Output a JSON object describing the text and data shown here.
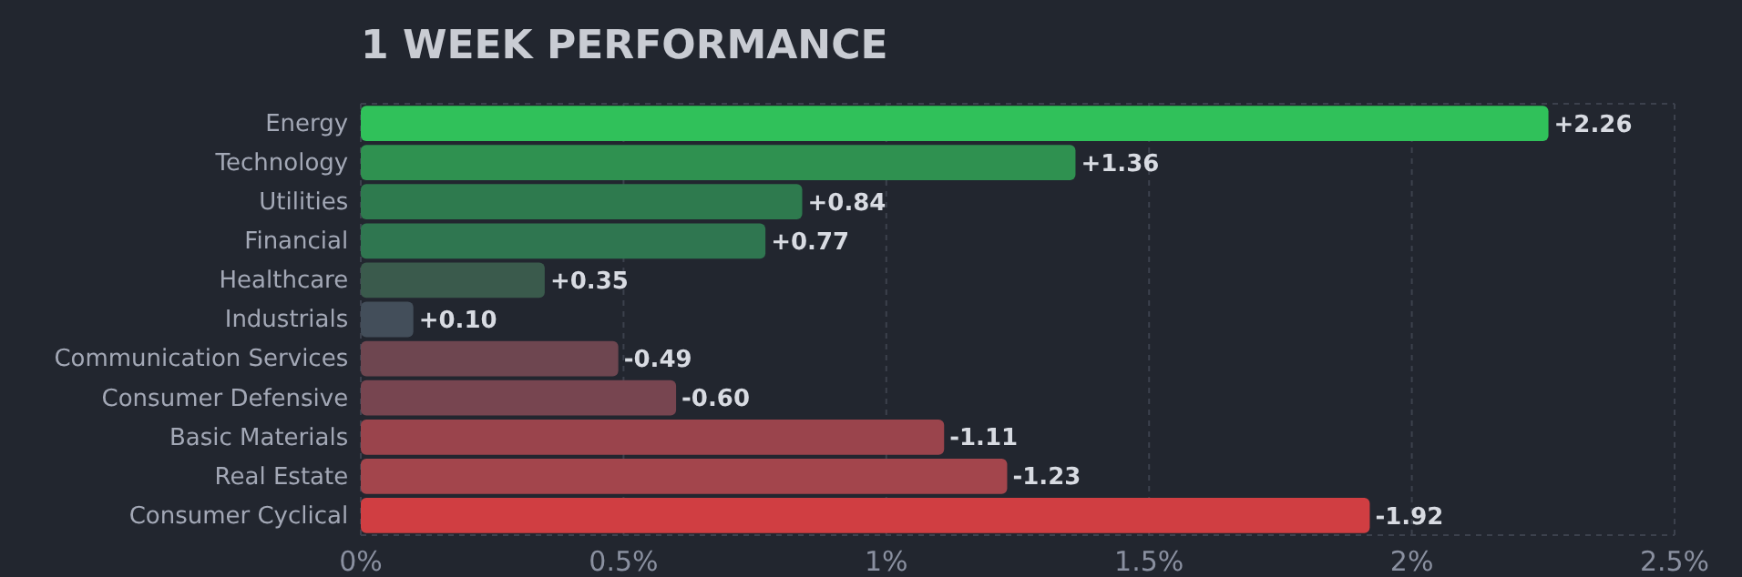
{
  "chart_data": {
    "type": "bar",
    "orientation": "horizontal",
    "title": "1 WEEK PERFORMANCE",
    "categories": [
      "Energy",
      "Technology",
      "Utilities",
      "Financial",
      "Healthcare",
      "Industrials",
      "Communication Services",
      "Consumer Defensive",
      "Basic Materials",
      "Real Estate",
      "Consumer Cyclical"
    ],
    "values": [
      2.26,
      1.36,
      0.84,
      0.77,
      0.35,
      0.1,
      -0.49,
      -0.6,
      -1.11,
      -1.23,
      -1.92
    ],
    "base": [
      0,
      0,
      0,
      0,
      0,
      0,
      0.49,
      0.6,
      1.11,
      1.23,
      1.92
    ],
    "value_labels": [
      "+2.26",
      "+1.36",
      "+0.84",
      "+0.77",
      "+0.35",
      "+0.10",
      "-0.49",
      "-0.60",
      "-1.11",
      "-1.23",
      "-1.92"
    ],
    "colors": [
      "#30c15a",
      "#2f9150",
      "#2e7a4e",
      "#2f7650",
      "#3a5a4c",
      "#434e5a",
      "#6e4650",
      "#774550",
      "#9a444c",
      "#a3454c",
      "#d03e42"
    ],
    "xlim": [
      0,
      2.5
    ],
    "xticks": [
      {
        "value": 0,
        "label": "0%"
      },
      {
        "value": 0.5,
        "label": "0.5%"
      },
      {
        "value": 1,
        "label": "1%"
      },
      {
        "value": 1.5,
        "label": "1.5%"
      },
      {
        "value": 2,
        "label": "2%"
      },
      {
        "value": 2.5,
        "label": "2.5%"
      }
    ],
    "grid": "x"
  }
}
